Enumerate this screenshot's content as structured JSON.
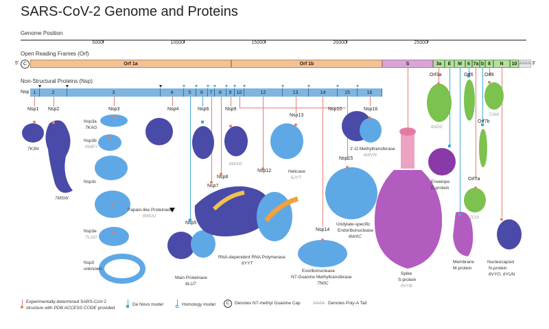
{
  "title": "SARS-CoV-2 Genome and Proteins",
  "genome": {
    "label": "Genome Position",
    "ticks": [
      "5000",
      "10000",
      "15000",
      "20000",
      "25000"
    ]
  },
  "orf": {
    "label": "Open Reading Frames (Orf)",
    "five_prime": "5'",
    "three_prime": "3'",
    "cap": "C",
    "segments": [
      "Orf 1a",
      "Orf 1b",
      "S",
      "3a",
      "E",
      "M",
      "6",
      "7a",
      "b",
      "8",
      "N",
      "10",
      "AAAA"
    ]
  },
  "nsp": {
    "label": "Non-Structural Proteins (Nsp)",
    "prefix": "Nsp",
    "segments": [
      "1",
      "2",
      "3",
      "4",
      "5",
      "6",
      "7",
      "8",
      "9",
      "10",
      "12",
      "13",
      "14",
      "15",
      "16"
    ]
  },
  "proteins": {
    "nsp1": {
      "name": "Nsp1",
      "pdb": "7K3N"
    },
    "nsp2": {
      "name": "Nsp2",
      "pdb": "7MSW"
    },
    "nsp3": {
      "name": "Nsp3"
    },
    "nsp3a": {
      "name": "Nsp3a",
      "pdb": "7KAG"
    },
    "nsp3b": {
      "name": "Nsp3b",
      "pdb": "6WEY"
    },
    "nsp3c": {
      "name": "Nsp3c"
    },
    "nsp3d": {
      "desc": "Papain-like Proteinase",
      "pdb": "6WUU"
    },
    "nsp3e": {
      "name": "Nsp3e",
      "pdb": "7LGO"
    },
    "nsp3u": {
      "name": "Nsp3",
      "desc": "unknown"
    },
    "nsp4": {
      "name": "Nsp4"
    },
    "nsp5": {
      "name": "Nsp5",
      "desc": "Main Proteinase",
      "pdb": "6LU7"
    },
    "nsp6": {
      "name": "Nsp6"
    },
    "nsp7": {
      "name": "Nsp7"
    },
    "nsp8": {
      "name": "Nsp8"
    },
    "nsp9": {
      "name": "Nsp9",
      "pdb": "6WXD"
    },
    "nsp10": {
      "name": "Nsp10"
    },
    "nsp12": {
      "name": "Nsp12",
      "desc": "RNA-dependent RNA Polymerase",
      "pdb": "6YYT"
    },
    "nsp13": {
      "name": "Nsp13",
      "desc": "Helicase",
      "pdb": "6JYT"
    },
    "nsp14": {
      "name": "Nsp14",
      "desc1": "Exoribonuclease",
      "desc2": "N7-Guanine Methyltransferase",
      "pdb": "7N0C"
    },
    "nsp15": {
      "name": "Nsp15",
      "desc1": "Uridylate-specific",
      "desc2": "Endoribonuclease",
      "pdb": "6WXC"
    },
    "nsp16": {
      "name": "Nsp16",
      "desc": "2'-O Methyltransferase",
      "pdb": "6WVN"
    },
    "spike": {
      "desc1": "Spike",
      "desc2": "S-protein",
      "pdb": "6VYB"
    },
    "orf3a": {
      "name": "Orf3a",
      "pdb": "6XDC"
    },
    "envelope": {
      "desc1": "Envelope",
      "desc2": "E-protein"
    },
    "membrane": {
      "desc1": "Membrane",
      "desc2": "M-protein"
    },
    "orf6": {
      "name": "Orf6"
    },
    "orf7a": {
      "name": "Orf7a",
      "pdb": "7CI3"
    },
    "orf7b": {
      "name": "Orf7b"
    },
    "orf8": {
      "name": "Orf8",
      "pdb": "7JX6"
    },
    "nucleo": {
      "desc1": "Nucleocapsid",
      "desc2": "N-protein",
      "pdb": "6VYO, 6YUN"
    }
  },
  "legend": {
    "exp1": "Experimentally-determined SARS-CoV-2",
    "exp2_a": "structure with ",
    "exp2_b": "PDB ACCESS CODE",
    "exp2_c": " provided",
    "denovo": "De Novo model",
    "homology": "Homology model",
    "cap_sym": "C",
    "cap": "Denotes N7-methyl Guanine Cap",
    "polya_sym": "AAAA",
    "polya": "Denotes Poly-A Tail"
  },
  "colors": {
    "orf1": "#f2c195",
    "spike": "#d8a6d4",
    "orf3a": "#b5e0a0",
    "nsp_bar": "#7fb5df",
    "dark_purple": "#4a4aa8",
    "light_blue": "#5fa8e6",
    "green": "#7cc24e",
    "magenta": "#b25cc0",
    "pink": "#e47aa8",
    "marker": "#e57c6c"
  }
}
